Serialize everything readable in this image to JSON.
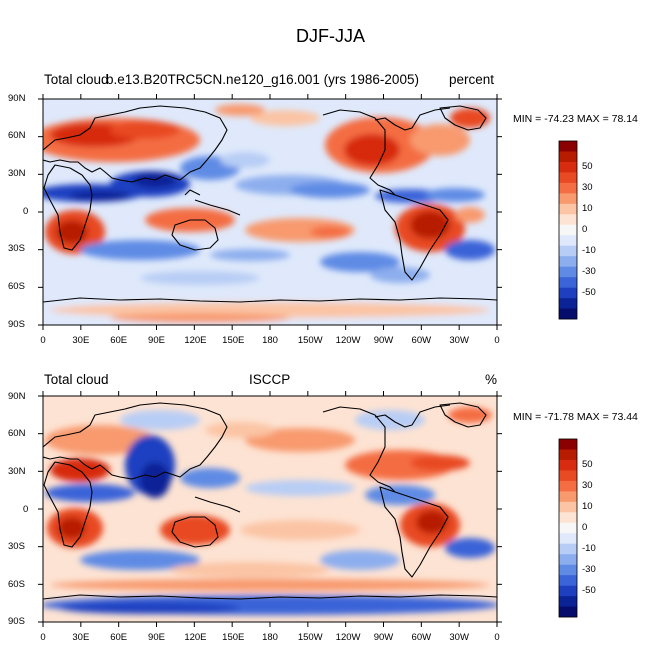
{
  "title": "DJF-JJA",
  "panels": [
    {
      "left_label": "Total cloud",
      "center_label": "b.e13.B20TRC5CN.ne120_g16.001 (yrs 1986-2005)",
      "right_label": "percent",
      "stats": "MIN = -74.23 MAX =  78.14"
    },
    {
      "left_label": "Total cloud",
      "center_label": "ISCCP",
      "right_label": "%",
      "stats": "MIN = -71.78 MAX =  73.44"
    }
  ],
  "axes": {
    "lat_labels": [
      "90N",
      "60N",
      "30N",
      "0",
      "30S",
      "60S",
      "90S"
    ],
    "lon_labels": [
      "0",
      "30E",
      "60E",
      "90E",
      "120E",
      "150E",
      "180",
      "150W",
      "120W",
      "90W",
      "60W",
      "30W",
      "0"
    ]
  },
  "colorbar": {
    "labels": [
      "50",
      "30",
      "10",
      "0",
      "-10",
      "-30",
      "-50"
    ],
    "colors": [
      "#8b0000",
      "#b71c00",
      "#d72c10",
      "#e84a24",
      "#f46d43",
      "#f89a6e",
      "#fbc4a4",
      "#fde3d3",
      "#f7f7f7",
      "#dfe9fb",
      "#b8cdf5",
      "#8daeee",
      "#5f8be5",
      "#3a64d8",
      "#1f3fc1",
      "#0b2397",
      "#050c6b"
    ]
  }
}
